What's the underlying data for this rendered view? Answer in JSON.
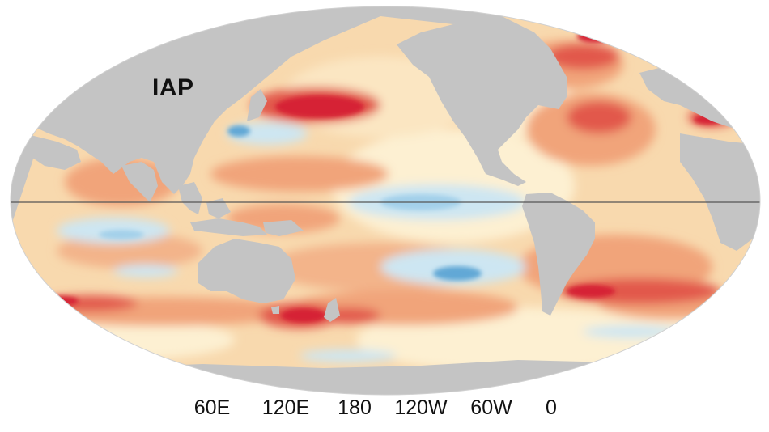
{
  "map": {
    "label": "IAP",
    "longitude_labels": [
      "60E",
      "120E",
      "180",
      "120W",
      "60W",
      "0"
    ],
    "projection": "Robinson-like (global oval)",
    "colors": {
      "land": "#c4c4c4",
      "ocean_neutral": "#fdf0d2",
      "warm_light": "#f7cf9c",
      "warm_medium": "#f1a47a",
      "warm_strong": "#e2584c",
      "warm_extreme": "#d62334",
      "cool_light": "#cde6f2",
      "cool_medium": "#a3d0ea",
      "cool_strong": "#62a8d6",
      "equator_line": "#555555"
    }
  }
}
